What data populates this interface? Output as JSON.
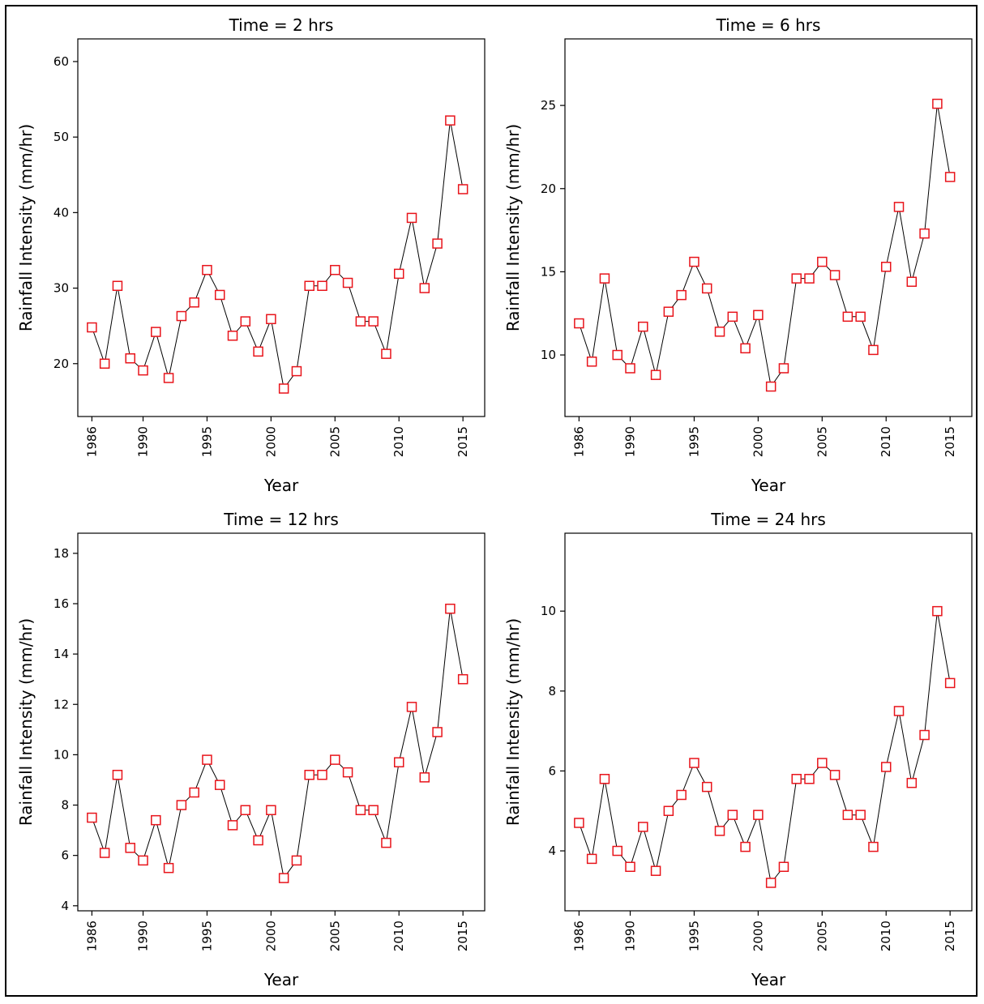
{
  "chart_data": [
    {
      "type": "line",
      "title": "Time = 2 hrs",
      "xlabel": "Year",
      "ylabel": "Rainfall Intensity (mm/hr)",
      "xlim": [
        1984.9,
        2016.7
      ],
      "ylim": [
        13,
        63
      ],
      "xticks": [
        1986,
        1990,
        1995,
        2000,
        2005,
        2010,
        2015
      ],
      "yticks": [
        20,
        30,
        40,
        50,
        60
      ],
      "marker": "square",
      "marker_color": "#e8141b",
      "line_color": "#000000",
      "x": [
        1986,
        1987,
        1988,
        1989,
        1990,
        1991,
        1992,
        1993,
        1994,
        1995,
        1996,
        1997,
        1998,
        1999,
        2000,
        2001,
        2002,
        2003,
        2004,
        2005,
        2006,
        2007,
        2008,
        2009,
        2010,
        2011,
        2012,
        2013,
        2014,
        2015
      ],
      "values": [
        24.8,
        20.0,
        30.3,
        20.7,
        19.1,
        24.2,
        18.1,
        26.3,
        28.1,
        32.4,
        29.1,
        23.7,
        25.6,
        21.6,
        25.9,
        16.7,
        19.0,
        30.3,
        30.3,
        32.4,
        30.7,
        25.6,
        25.6,
        21.3,
        31.9,
        39.3,
        30.0,
        35.9,
        52.2,
        43.1
      ]
    },
    {
      "type": "line",
      "title": "Time = 6 hrs",
      "xlabel": "Year",
      "ylabel": "Rainfall Intensity (mm/hr)",
      "xlim": [
        1984.9,
        2016.7
      ],
      "ylim": [
        6.3,
        29.0
      ],
      "xticks": [
        1986,
        1990,
        1995,
        2000,
        2005,
        2010,
        2015
      ],
      "yticks": [
        10,
        15,
        20,
        25
      ],
      "marker": "square",
      "marker_color": "#e8141b",
      "line_color": "#000000",
      "x": [
        1986,
        1987,
        1988,
        1989,
        1990,
        1991,
        1992,
        1993,
        1994,
        1995,
        1996,
        1997,
        1998,
        1999,
        2000,
        2001,
        2002,
        2003,
        2004,
        2005,
        2006,
        2007,
        2008,
        2009,
        2010,
        2011,
        2012,
        2013,
        2014,
        2015
      ],
      "values": [
        11.9,
        9.6,
        14.6,
        10.0,
        9.2,
        11.7,
        8.8,
        12.6,
        13.6,
        15.6,
        14.0,
        11.4,
        12.3,
        10.4,
        12.4,
        8.1,
        9.2,
        14.6,
        14.6,
        15.6,
        14.8,
        12.3,
        12.3,
        10.3,
        15.3,
        18.9,
        14.4,
        17.3,
        25.1,
        20.7
      ]
    },
    {
      "type": "line",
      "title": "Time = 12 hrs",
      "xlabel": "Year",
      "ylabel": "Rainfall Intensity (mm/hr)",
      "xlim": [
        1984.9,
        2016.7
      ],
      "ylim": [
        3.8,
        18.8
      ],
      "xticks": [
        1986,
        1990,
        1995,
        2000,
        2005,
        2010,
        2015
      ],
      "yticks": [
        4,
        6,
        8,
        10,
        12,
        14,
        16,
        18
      ],
      "marker": "square",
      "marker_color": "#e8141b",
      "line_color": "#000000",
      "x": [
        1986,
        1987,
        1988,
        1989,
        1990,
        1991,
        1992,
        1993,
        1994,
        1995,
        1996,
        1997,
        1998,
        1999,
        2000,
        2001,
        2002,
        2003,
        2004,
        2005,
        2006,
        2007,
        2008,
        2009,
        2010,
        2011,
        2012,
        2013,
        2014,
        2015
      ],
      "values": [
        7.5,
        6.1,
        9.2,
        6.3,
        5.8,
        7.4,
        5.5,
        8.0,
        8.5,
        9.8,
        8.8,
        7.2,
        7.8,
        6.6,
        7.8,
        5.1,
        5.8,
        9.2,
        9.2,
        9.8,
        9.3,
        7.8,
        7.8,
        6.5,
        9.7,
        11.9,
        9.1,
        10.9,
        15.8,
        13.0
      ]
    },
    {
      "type": "line",
      "title": "Time = 24 hrs",
      "xlabel": "Year",
      "ylabel": "Rainfall Intensity (mm/hr)",
      "xlim": [
        1984.9,
        2016.7
      ],
      "ylim": [
        2.5,
        11.95
      ],
      "xticks": [
        1986,
        1990,
        1995,
        2000,
        2005,
        2010,
        2015
      ],
      "yticks": [
        4,
        6,
        8,
        10
      ],
      "marker": "square",
      "marker_color": "#e8141b",
      "line_color": "#000000",
      "x": [
        1986,
        1987,
        1988,
        1989,
        1990,
        1991,
        1992,
        1993,
        1994,
        1995,
        1996,
        1997,
        1998,
        1999,
        2000,
        2001,
        2002,
        2003,
        2004,
        2005,
        2006,
        2007,
        2008,
        2009,
        2010,
        2011,
        2012,
        2013,
        2014,
        2015
      ],
      "values": [
        4.7,
        3.8,
        5.8,
        4.0,
        3.6,
        4.6,
        3.5,
        5.0,
        5.4,
        6.2,
        5.6,
        4.5,
        4.9,
        4.1,
        4.9,
        3.2,
        3.6,
        5.8,
        5.8,
        6.2,
        5.9,
        4.9,
        4.9,
        4.1,
        6.1,
        7.5,
        5.7,
        6.9,
        10.0,
        8.2
      ]
    }
  ]
}
